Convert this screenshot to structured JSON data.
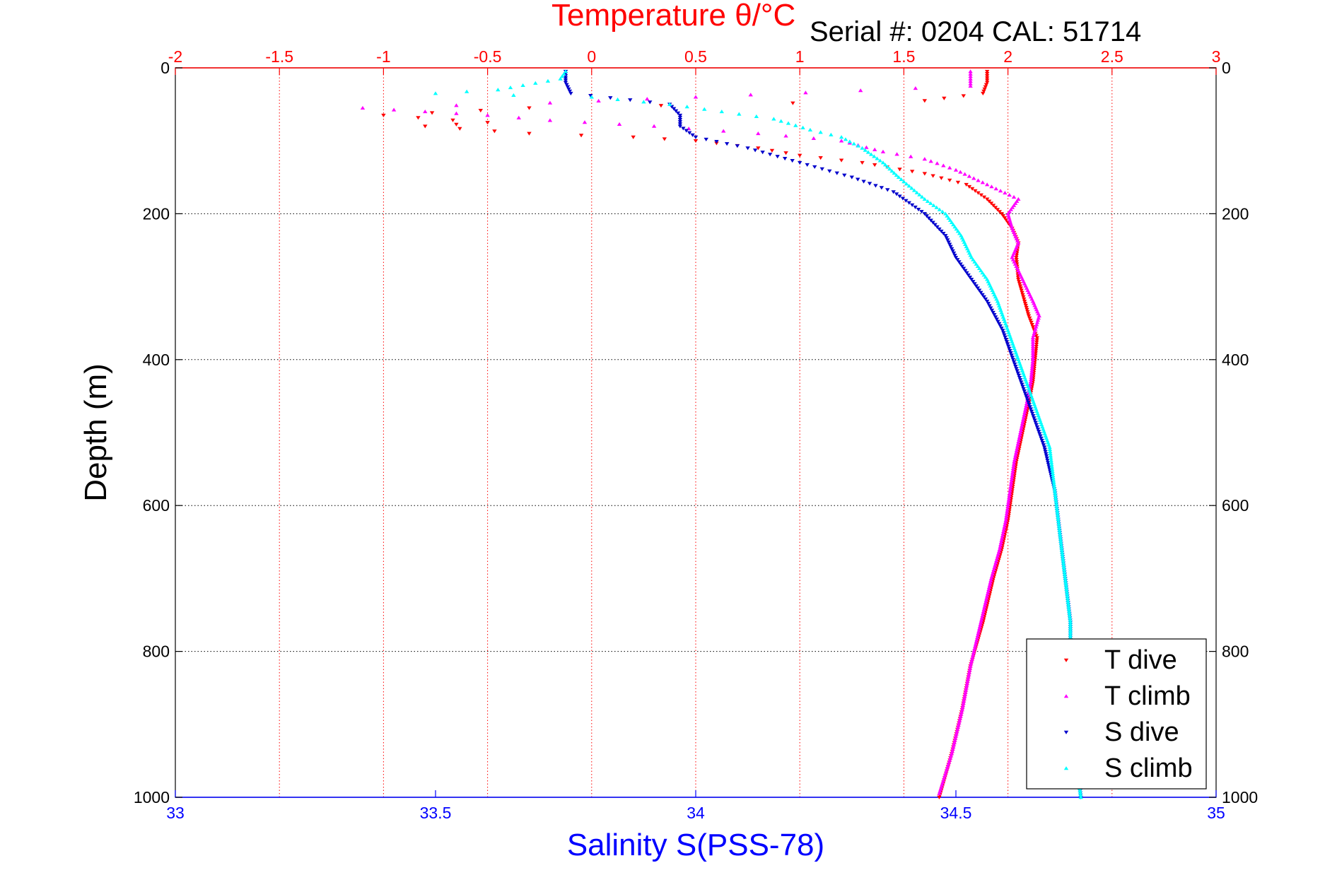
{
  "chart_data": {
    "type": "scatter",
    "title": "Temperature θ/°C",
    "subtitle": "Serial #: 0204   CAL: 51714",
    "xlabel_top": "Temperature θ/°C",
    "xlabel_bottom": "Salinity S(PSS-78)",
    "ylabel": "Depth (m)",
    "x_top_range": [
      -2,
      3
    ],
    "x_bottom_range": [
      33,
      35
    ],
    "y_range": [
      0,
      1000
    ],
    "y_reversed": true,
    "x_top_ticks": [
      "-2",
      "-1.5",
      "-1",
      "-0.5",
      "0",
      "0.5",
      "1",
      "1.5",
      "2",
      "2.5",
      "3"
    ],
    "x_bottom_ticks": [
      "33",
      "33.5",
      "34",
      "34.5",
      "35"
    ],
    "y_ticks": [
      "0",
      "200",
      "400",
      "600",
      "800",
      "1000"
    ],
    "grid": true,
    "legend_position": "bottom-right",
    "colors": {
      "t_axis": "#ff0000",
      "s_axis": "#0000ff",
      "t_dive": "#ff0000",
      "t_climb": "#ff00ff",
      "s_dive": "#0000cc",
      "s_climb": "#00ffff"
    },
    "series": [
      {
        "name": "T dive",
        "axis": "temperature",
        "points": [
          [
            1.9,
            5
          ],
          [
            1.9,
            20
          ],
          [
            1.88,
            35
          ],
          [
            1.6,
            45
          ],
          [
            -0.3,
            55
          ],
          [
            -1.0,
            65
          ],
          [
            -0.5,
            75
          ],
          [
            -0.8,
            80
          ],
          [
            -0.3,
            90
          ],
          [
            0.2,
            95
          ],
          [
            0.5,
            100
          ],
          [
            0.8,
            110
          ],
          [
            1.0,
            120
          ],
          [
            1.3,
            130
          ],
          [
            1.6,
            145
          ],
          [
            1.8,
            160
          ],
          [
            1.9,
            180
          ],
          [
            1.97,
            200
          ],
          [
            2.02,
            220
          ],
          [
            2.05,
            240
          ],
          [
            2.04,
            260
          ],
          [
            2.05,
            290
          ],
          [
            2.08,
            320
          ],
          [
            2.1,
            340
          ],
          [
            2.14,
            370
          ],
          [
            2.13,
            400
          ],
          [
            2.12,
            430
          ],
          [
            2.1,
            460
          ],
          [
            2.07,
            500
          ],
          [
            2.04,
            540
          ],
          [
            2.02,
            580
          ],
          [
            2.0,
            620
          ],
          [
            1.97,
            660
          ],
          [
            1.93,
            700
          ],
          [
            1.88,
            760
          ],
          [
            1.82,
            820
          ],
          [
            1.78,
            880
          ],
          [
            1.73,
            940
          ],
          [
            1.67,
            1000
          ]
        ]
      },
      {
        "name": "T climb",
        "axis": "temperature",
        "points": [
          [
            1.82,
            5
          ],
          [
            1.82,
            15
          ],
          [
            1.82,
            25
          ],
          [
            0.5,
            40
          ],
          [
            -0.2,
            48
          ],
          [
            -1.1,
            55
          ],
          [
            -0.8,
            60
          ],
          [
            -0.5,
            65
          ],
          [
            -0.2,
            72
          ],
          [
            0.3,
            80
          ],
          [
            0.8,
            90
          ],
          [
            1.2,
            100
          ],
          [
            1.4,
            115
          ],
          [
            1.6,
            125
          ],
          [
            1.75,
            140
          ],
          [
            1.9,
            160
          ],
          [
            2.05,
            180
          ],
          [
            2.0,
            200
          ],
          [
            2.02,
            220
          ],
          [
            2.05,
            240
          ],
          [
            2.02,
            260
          ],
          [
            2.07,
            290
          ],
          [
            2.12,
            320
          ],
          [
            2.15,
            340
          ],
          [
            2.12,
            370
          ],
          [
            2.12,
            400
          ],
          [
            2.11,
            430
          ],
          [
            2.09,
            460
          ],
          [
            2.06,
            500
          ],
          [
            2.03,
            540
          ],
          [
            2.01,
            580
          ],
          [
            1.99,
            620
          ],
          [
            1.96,
            660
          ],
          [
            1.92,
            700
          ],
          [
            1.87,
            760
          ],
          [
            1.82,
            820
          ],
          [
            1.78,
            880
          ],
          [
            1.73,
            940
          ],
          [
            1.67,
            995
          ]
        ]
      },
      {
        "name": "S dive",
        "axis": "salinity",
        "points": [
          [
            33.75,
            5
          ],
          [
            33.75,
            20
          ],
          [
            33.76,
            35
          ],
          [
            33.95,
            50
          ],
          [
            33.97,
            65
          ],
          [
            33.97,
            80
          ],
          [
            34.0,
            95
          ],
          [
            34.1,
            110
          ],
          [
            34.2,
            130
          ],
          [
            34.3,
            150
          ],
          [
            34.38,
            170
          ],
          [
            34.44,
            200
          ],
          [
            34.48,
            230
          ],
          [
            34.5,
            260
          ],
          [
            34.53,
            290
          ],
          [
            34.56,
            320
          ],
          [
            34.59,
            360
          ],
          [
            34.61,
            400
          ],
          [
            34.63,
            440
          ],
          [
            34.65,
            480
          ],
          [
            34.67,
            520
          ],
          [
            34.69,
            580
          ],
          [
            34.7,
            640
          ],
          [
            34.71,
            700
          ],
          [
            34.72,
            760
          ],
          [
            34.72,
            820
          ],
          [
            34.73,
            880
          ],
          [
            34.73,
            940
          ],
          [
            34.74,
            1000
          ]
        ]
      },
      {
        "name": "S climb",
        "axis": "salinity",
        "points": [
          [
            33.75,
            5
          ],
          [
            33.74,
            15
          ],
          [
            33.62,
            30
          ],
          [
            33.5,
            35
          ],
          [
            33.8,
            40
          ],
          [
            33.95,
            50
          ],
          [
            34.05,
            60
          ],
          [
            34.15,
            70
          ],
          [
            34.22,
            85
          ],
          [
            34.28,
            95
          ],
          [
            34.32,
            110
          ],
          [
            34.36,
            130
          ],
          [
            34.39,
            150
          ],
          [
            34.44,
            180
          ],
          [
            34.48,
            200
          ],
          [
            34.51,
            230
          ],
          [
            34.53,
            260
          ],
          [
            34.56,
            290
          ],
          [
            34.58,
            320
          ],
          [
            34.6,
            360
          ],
          [
            34.62,
            400
          ],
          [
            34.64,
            440
          ],
          [
            34.66,
            480
          ],
          [
            34.68,
            520
          ],
          [
            34.69,
            580
          ],
          [
            34.7,
            640
          ],
          [
            34.71,
            700
          ],
          [
            34.72,
            760
          ],
          [
            34.72,
            820
          ],
          [
            34.73,
            880
          ],
          [
            34.73,
            940
          ],
          [
            34.74,
            1000
          ]
        ]
      }
    ]
  }
}
